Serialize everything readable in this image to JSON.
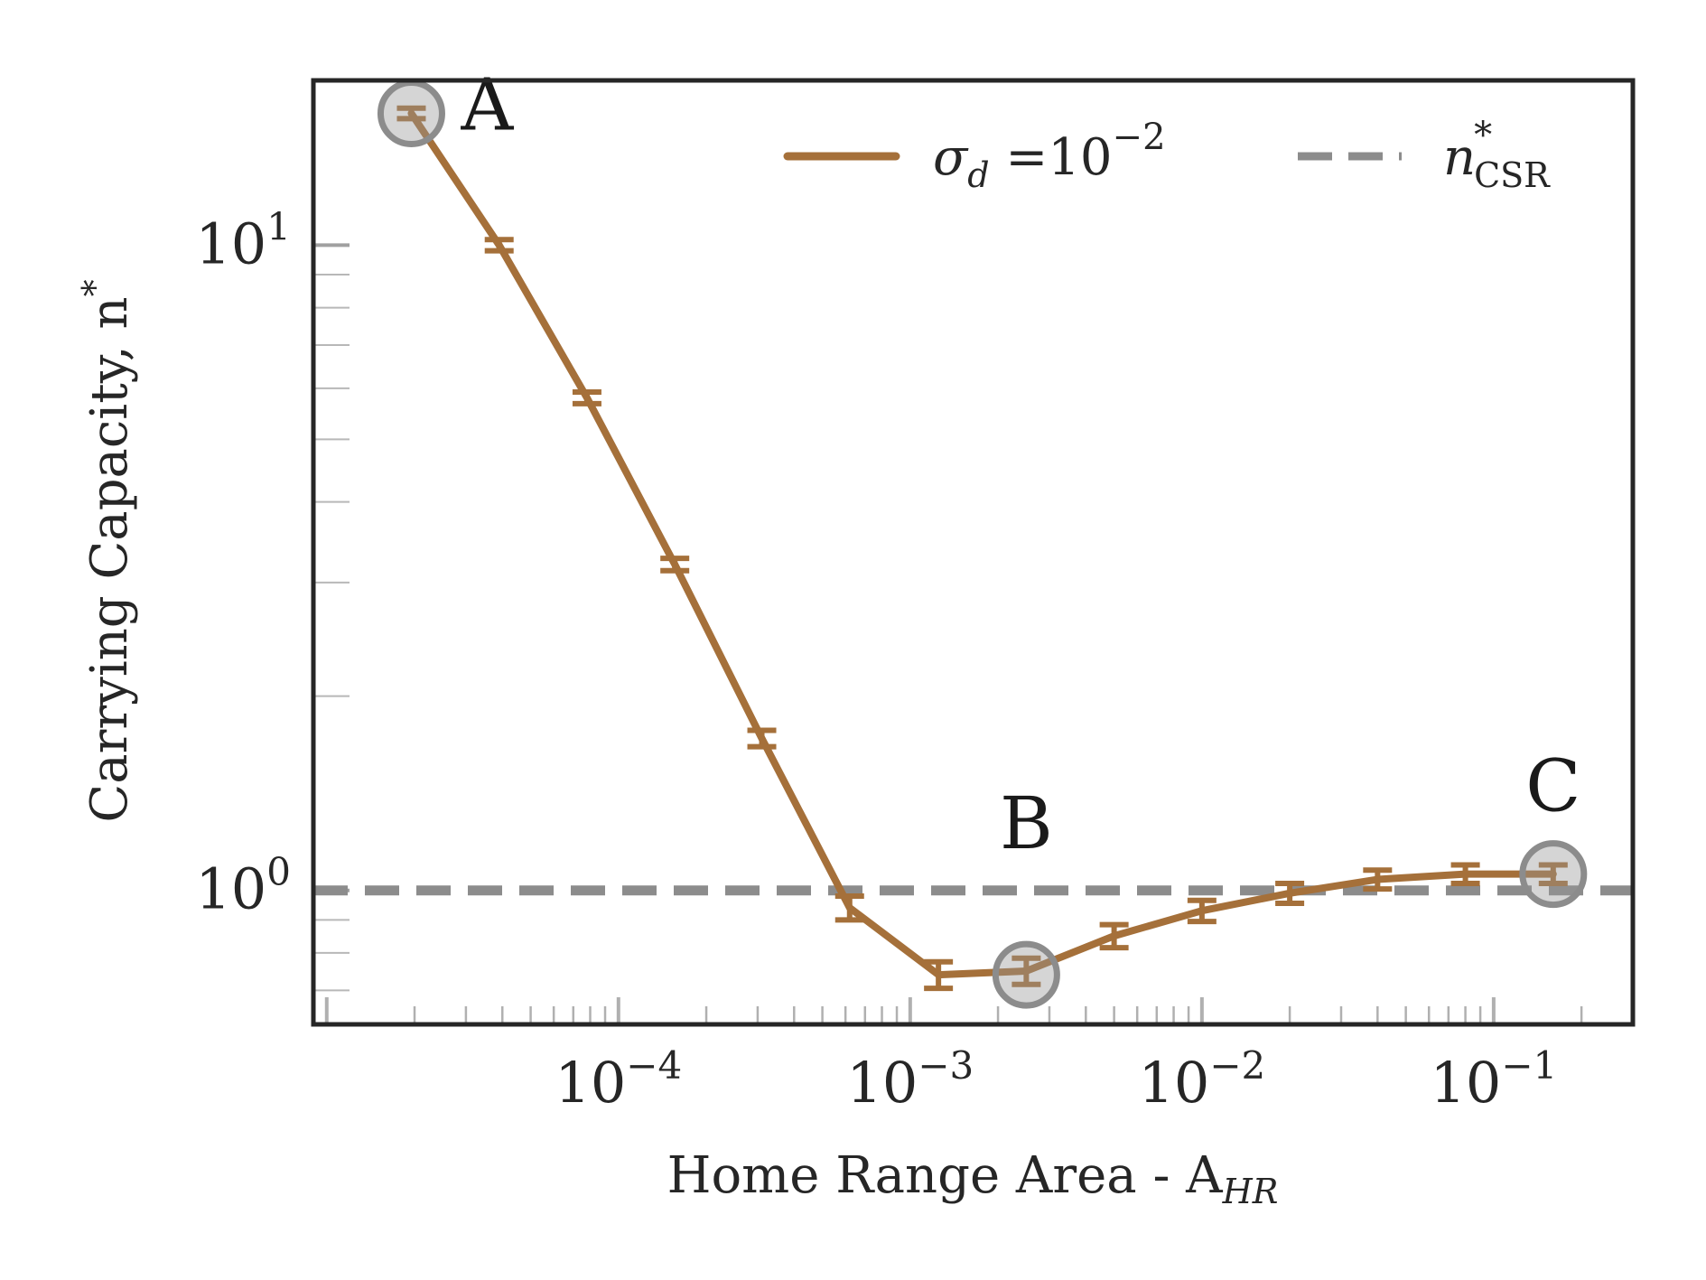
{
  "chart_data": {
    "type": "line",
    "xscale": "log",
    "yscale": "log",
    "xlim": [
      9e-06,
      0.3
    ],
    "ylim": [
      0.62,
      18
    ],
    "xlabel": "Home Range Area - A",
    "xlabel_sub": "HR",
    "ylabel": "Carrying Capacity, n",
    "ylabel_sup": "*",
    "x_ticks": [
      {
        "value": 0.0001,
        "base": "10",
        "exp": "−4"
      },
      {
        "value": 0.001,
        "base": "10",
        "exp": "−3"
      },
      {
        "value": 0.01,
        "base": "10",
        "exp": "−2"
      },
      {
        "value": 0.1,
        "base": "10",
        "exp": "−1"
      }
    ],
    "y_ticks": [
      {
        "value": 1,
        "base": "10",
        "exp": "0"
      },
      {
        "value": 10,
        "base": "10",
        "exp": "1"
      }
    ],
    "series": [
      {
        "name": "σ",
        "name_sub": "d",
        "name_suffix": " =10",
        "name_sup": "−2",
        "color": "#A5703A",
        "style": "solid",
        "x": [
          1.95e-05,
          3.9e-05,
          7.8e-05,
          0.000156,
          0.00031,
          0.00062,
          0.00125,
          0.0025,
          0.005,
          0.01,
          0.02,
          0.04,
          0.08,
          0.16
        ],
        "y": [
          16,
          10,
          5.8,
          3.2,
          1.72,
          0.94,
          0.74,
          0.75,
          0.85,
          0.93,
          0.99,
          1.04,
          1.06,
          1.06
        ],
        "err": [
          0.3,
          0.2,
          0.12,
          0.07,
          0.05,
          0.04,
          0.035,
          0.035,
          0.035,
          0.035,
          0.035,
          0.035,
          0.035,
          0.035
        ]
      },
      {
        "name": "n",
        "name_sup": "*",
        "name_sub": "CSR",
        "color": "#8C8C8C",
        "style": "dashed",
        "y_const": 1.0
      }
    ],
    "annotations": [
      {
        "label": "A",
        "x": 1.95e-05,
        "y": 16
      },
      {
        "label": "B",
        "x": 0.0025,
        "y": 0.74
      },
      {
        "label": "C",
        "x": 0.16,
        "y": 1.06
      }
    ],
    "legend": "top-right",
    "grid": false
  }
}
